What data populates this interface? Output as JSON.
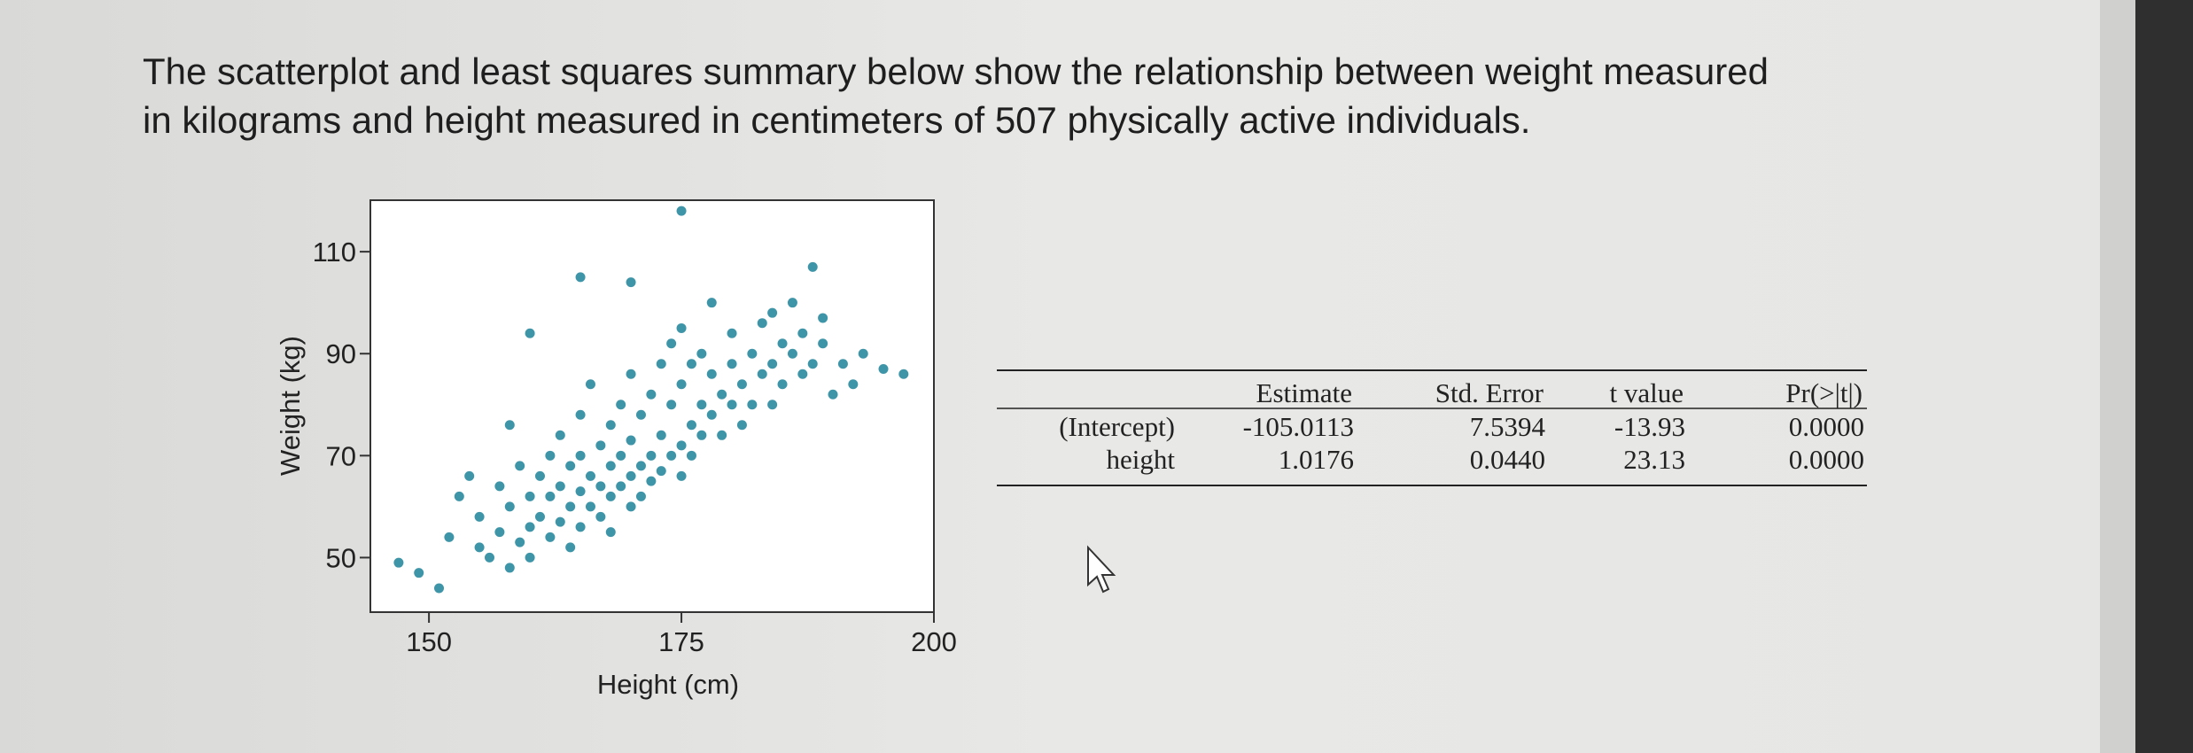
{
  "question": {
    "lines": [
      "The scatterplot and least squares summary below show the relationship between weight measured",
      "in kilograms and height measured in centimeters of 507 physically active individuals."
    ]
  },
  "chart_data": {
    "type": "scatter",
    "xlabel": "Height (cm)",
    "ylabel": "Weight (kg)",
    "color": "#2a8a9e",
    "x": [
      147,
      149,
      151,
      152,
      153,
      154,
      155,
      155,
      156,
      157,
      157,
      158,
      158,
      159,
      159,
      160,
      160,
      160,
      161,
      161,
      162,
      162,
      162,
      163,
      163,
      163,
      164,
      164,
      164,
      165,
      165,
      165,
      165,
      166,
      166,
      166,
      167,
      167,
      167,
      168,
      168,
      168,
      168,
      169,
      169,
      169,
      170,
      170,
      170,
      170,
      171,
      171,
      171,
      172,
      172,
      172,
      173,
      173,
      173,
      174,
      174,
      174,
      175,
      175,
      175,
      175,
      176,
      176,
      176,
      177,
      177,
      177,
      178,
      178,
      178,
      179,
      179,
      180,
      180,
      180,
      181,
      181,
      182,
      182,
      183,
      183,
      184,
      184,
      185,
      185,
      186,
      186,
      187,
      187,
      188,
      189,
      190,
      191,
      193,
      195,
      158,
      160,
      165,
      170,
      175,
      184,
      188,
      189,
      197,
      192
    ],
    "values": [
      49,
      47,
      44,
      54,
      62,
      66,
      52,
      58,
      50,
      64,
      55,
      48,
      60,
      53,
      68,
      56,
      62,
      50,
      58,
      66,
      54,
      70,
      62,
      57,
      74,
      64,
      60,
      68,
      52,
      63,
      78,
      56,
      70,
      60,
      66,
      84,
      58,
      72,
      64,
      62,
      76,
      68,
      55,
      64,
      80,
      70,
      60,
      73,
      66,
      86,
      68,
      78,
      62,
      70,
      82,
      65,
      74,
      88,
      67,
      70,
      80,
      92,
      72,
      84,
      66,
      95,
      76,
      88,
      70,
      80,
      90,
      74,
      78,
      86,
      100,
      82,
      74,
      88,
      80,
      94,
      84,
      76,
      90,
      80,
      86,
      96,
      88,
      80,
      92,
      84,
      90,
      100,
      86,
      94,
      88,
      92,
      82,
      88,
      90,
      87,
      76,
      94,
      105,
      104,
      118,
      98,
      107,
      97,
      86,
      84
    ],
    "xlim": [
      144.2,
      200
    ],
    "ylim": [
      39.3,
      120.1
    ],
    "xticks": [
      150,
      175,
      200
    ],
    "yticks": [
      50,
      70,
      90,
      110
    ]
  },
  "table": {
    "columns": [
      "Estimate",
      "Std. Error",
      "t value",
      "Pr(>|t|)"
    ],
    "rows": [
      [
        "(Intercept)",
        "-105.0113",
        "7.5394",
        "-13.93",
        "0.0000"
      ],
      [
        "height",
        "1.0176",
        "0.0440",
        "23.13",
        "0.0000"
      ]
    ]
  }
}
